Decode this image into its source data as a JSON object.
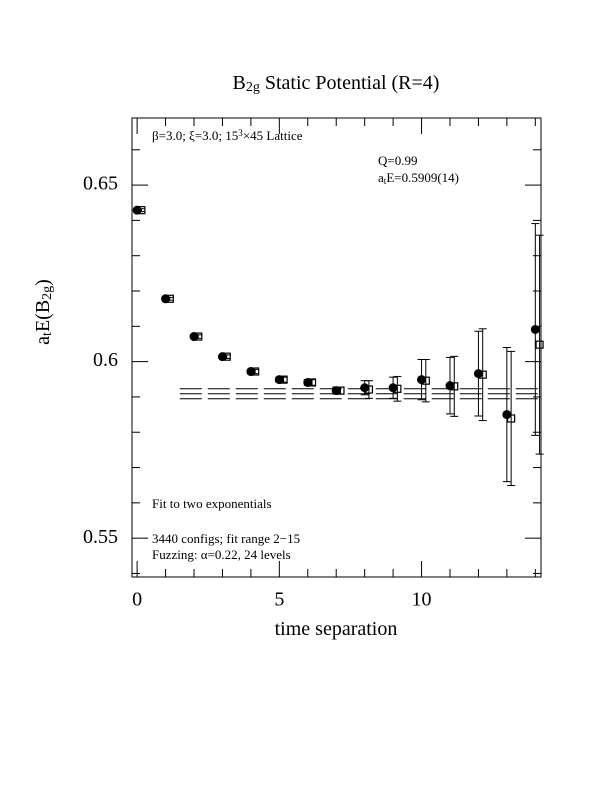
{
  "chart_data": {
    "type": "errorbar",
    "title": [
      {
        "text": "B"
      },
      {
        "text": "2g",
        "sub": true
      },
      {
        "text": " Static Potential (R=4)"
      }
    ],
    "x_label": [
      {
        "text": "time separation"
      }
    ],
    "y_label": [
      {
        "text": "a"
      },
      {
        "text": "t",
        "sub": true
      },
      {
        "text": "E(B"
      },
      {
        "text": "2g",
        "sub": true
      },
      {
        "text": ")"
      }
    ],
    "annotations": [
      [
        {
          "text": "β=3.0; ξ=3.0; 15"
        },
        {
          "text": "3",
          "sup": true
        },
        {
          "text": "×45 Lattice"
        }
      ],
      [
        {
          "text": "Q=0.99"
        }
      ],
      [
        {
          "text": "a"
        },
        {
          "text": "t",
          "sub": true
        },
        {
          "text": "E=0.5909(14)"
        }
      ],
      [
        {
          "text": "Fit to two exponentials"
        }
      ],
      [
        {
          "text": "3440 configs; fit range 2−15"
        }
      ],
      [
        {
          "text": "Fuzzing: α=0.22, 24 levels"
        }
      ]
    ],
    "xlim": [
      -0.18,
      14.2
    ],
    "ylim": [
      0.539,
      0.669
    ],
    "xticks": [
      0,
      5,
      10
    ],
    "xticks_minor": [
      1,
      2,
      3,
      4,
      6,
      7,
      8,
      9,
      11,
      12,
      13,
      14
    ],
    "yticks": [
      {
        "value": 0.55,
        "label": "0.55"
      },
      0.6,
      {
        "value": 0.65,
        "label": "0.65"
      }
    ],
    "yticks_minor": [
      0.54,
      0.56,
      0.57,
      0.58,
      0.59,
      0.61,
      0.62,
      0.63,
      0.64,
      0.66
    ],
    "series": [
      {
        "marker": "circle",
        "color": "#000000",
        "x": [
          0,
          1,
          2,
          3,
          4,
          5,
          6,
          7,
          8,
          9,
          10,
          11,
          12,
          13,
          14
        ],
        "values": [
          0.6429,
          0.6178,
          0.6071,
          0.6014,
          0.5972,
          0.5949,
          0.5941,
          0.5918,
          0.5926,
          0.5926,
          0.5949,
          0.5932,
          0.5966,
          0.585,
          0.6091
        ],
        "errors": [
          0.0004,
          0.0004,
          0.0005,
          0.0005,
          0.0006,
          0.0007,
          0.0008,
          0.001,
          0.002,
          0.003,
          0.0057,
          0.008,
          0.012,
          0.019,
          0.03
        ]
      },
      {
        "marker": "square",
        "color": "#000000",
        "x": [
          0.15,
          1.15,
          2.15,
          3.15,
          4.15,
          5.15,
          6.15,
          7.15,
          8.15,
          9.15,
          10.15,
          11.15,
          12.15,
          13.15,
          14.15
        ],
        "values": [
          0.6429,
          0.6178,
          0.6071,
          0.6014,
          0.5972,
          0.5949,
          0.5941,
          0.5918,
          0.5921,
          0.5923,
          0.5946,
          0.593,
          0.5963,
          0.5839,
          0.6048
        ],
        "errors": [
          0.0004,
          0.0004,
          0.0005,
          0.0005,
          0.0006,
          0.0007,
          0.0008,
          0.001,
          0.0025,
          0.0035,
          0.006,
          0.0085,
          0.013,
          0.019,
          0.031
        ]
      }
    ],
    "fit": {
      "value": 0.5909,
      "error": 0.0014,
      "x": [
        1.5,
        14.2
      ]
    }
  }
}
